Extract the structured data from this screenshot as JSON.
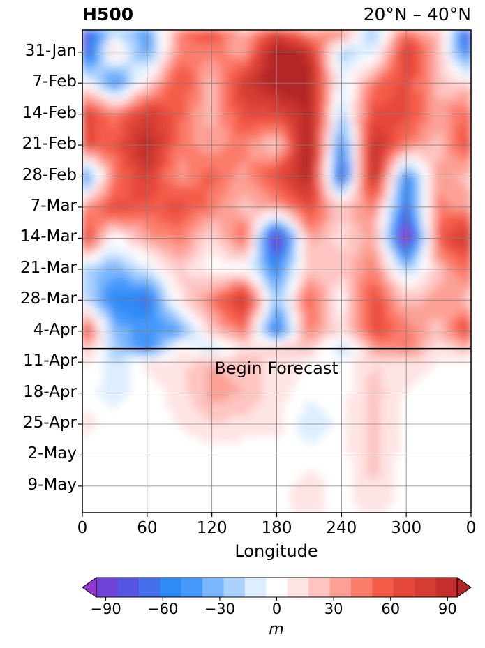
{
  "chart_data": {
    "type": "heatmap",
    "title_left": "H500",
    "title_right": "20°N – 40°N",
    "xlabel": "Longitude",
    "x_ticks": [
      "0",
      "60",
      "120",
      "180",
      "240",
      "300",
      "0"
    ],
    "x_range": [
      0,
      360
    ],
    "y_ticks": [
      "31-Jan",
      "7-Feb",
      "14-Feb",
      "21-Feb",
      "28-Feb",
      "7-Mar",
      "14-Mar",
      "21-Mar",
      "28-Mar",
      "4-Apr",
      "11-Apr",
      "18-Apr",
      "25-Apr",
      "2-May",
      "9-May"
    ],
    "y_range": [
      "2025-01-26",
      "2025-05-15"
    ],
    "forecast_start": "2025-04-08",
    "forecast_label": "Begin Forecast",
    "grid": true,
    "colorbar": {
      "orientation": "horizontal",
      "position": "bottom",
      "levels": [
        -105,
        -95,
        -85,
        -75,
        -65,
        -55,
        -45,
        -35,
        -25,
        -15,
        -5,
        5,
        15,
        25,
        35,
        45,
        55,
        65,
        75,
        85,
        95,
        105
      ],
      "tick_labels": [
        "−90",
        "−60",
        "−30",
        "0",
        "30",
        "60",
        "90"
      ],
      "tick_values": [
        -90,
        -60,
        -30,
        0,
        30,
        60,
        90
      ],
      "unit": "m",
      "colors": [
        "#9434ce",
        "#7043d8",
        "#5756e4",
        "#4470ec",
        "#2e8af5",
        "#4599fb",
        "#7ab6fb",
        "#aad2fd",
        "#ddeeff",
        "#ffffff",
        "#ffe4e4",
        "#fdc4c1",
        "#fca095",
        "#fb7c6a",
        "#f45b48",
        "#e5473a",
        "#d53c33",
        "#c5302d",
        "#b22527"
      ]
    },
    "field": {
      "lon_step": 30,
      "lon": [
        0,
        30,
        60,
        90,
        120,
        150,
        180,
        210,
        240,
        270,
        300,
        330,
        360
      ],
      "dates": [
        "2025-01-26",
        "2025-01-31",
        "2025-02-07",
        "2025-02-14",
        "2025-02-21",
        "2025-02-28",
        "2025-03-07",
        "2025-03-14",
        "2025-03-21",
        "2025-03-28",
        "2025-04-04",
        "2025-04-08",
        "2025-04-11",
        "2025-04-18",
        "2025-04-25",
        "2025-05-02",
        "2025-05-09",
        "2025-05-15"
      ],
      "values": [
        [
          -80,
          -20,
          -40,
          40,
          60,
          20,
          60,
          20,
          50,
          -30,
          40,
          20,
          -80
        ],
        [
          -80,
          20,
          -40,
          40,
          40,
          30,
          100,
          80,
          -20,
          -10,
          70,
          20,
          -60
        ],
        [
          10,
          -50,
          10,
          60,
          20,
          70,
          100,
          90,
          -10,
          40,
          60,
          20,
          10
        ],
        [
          70,
          40,
          70,
          50,
          20,
          60,
          60,
          90,
          -20,
          60,
          60,
          30,
          50
        ],
        [
          60,
          50,
          90,
          40,
          30,
          40,
          10,
          100,
          -50,
          80,
          40,
          20,
          60
        ],
        [
          -60,
          40,
          70,
          30,
          50,
          30,
          60,
          90,
          -70,
          90,
          -50,
          30,
          20
        ],
        [
          30,
          60,
          50,
          60,
          40,
          20,
          30,
          60,
          20,
          40,
          -60,
          40,
          30
        ],
        [
          70,
          0,
          30,
          40,
          10,
          50,
          -95,
          30,
          10,
          30,
          -95,
          50,
          80
        ],
        [
          -20,
          -30,
          -10,
          20,
          0,
          0,
          -50,
          20,
          20,
          40,
          -20,
          20,
          50
        ],
        [
          -10,
          -50,
          -60,
          10,
          40,
          80,
          -30,
          50,
          0,
          60,
          20,
          30,
          20
        ],
        [
          70,
          -30,
          -40,
          -40,
          20,
          40,
          -60,
          40,
          10,
          60,
          40,
          20,
          70
        ],
        [
          30,
          -20,
          -50,
          10,
          -20,
          10,
          20,
          20,
          -20,
          30,
          40,
          10,
          20
        ],
        [
          10,
          -15,
          10,
          10,
          25,
          20,
          10,
          5,
          0,
          15,
          10,
          5,
          5
        ],
        [
          0,
          -10,
          0,
          10,
          30,
          25,
          10,
          0,
          0,
          20,
          5,
          0,
          0
        ],
        [
          10,
          0,
          0,
          5,
          15,
          10,
          10,
          -15,
          0,
          20,
          0,
          0,
          0
        ],
        [
          0,
          0,
          0,
          0,
          0,
          0,
          0,
          0,
          0,
          20,
          0,
          0,
          0
        ],
        [
          0,
          0,
          0,
          0,
          0,
          0,
          0,
          10,
          0,
          15,
          0,
          0,
          0
        ],
        [
          0,
          0,
          0,
          0,
          0,
          0,
          0,
          10,
          0,
          10,
          0,
          0,
          0
        ]
      ]
    }
  }
}
